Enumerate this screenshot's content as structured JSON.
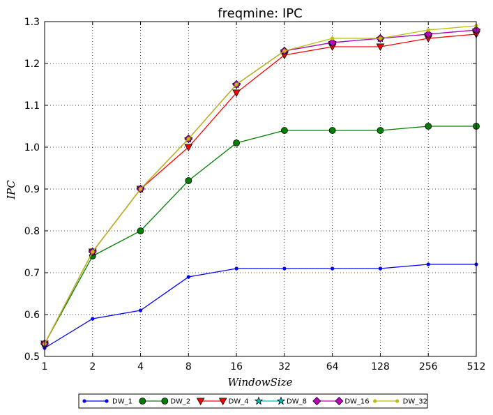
{
  "chart_data": {
    "type": "line",
    "title": "freqmine: IPC",
    "xlabel": "WindowSize",
    "ylabel": "IPC",
    "x": [
      1,
      2,
      4,
      8,
      16,
      32,
      64,
      128,
      256,
      512
    ],
    "x_tick_labels": [
      "1",
      "2",
      "4",
      "8",
      "16",
      "32",
      "64",
      "128",
      "256",
      "512"
    ],
    "x_scale": "log2",
    "ylim": [
      0.5,
      1.3
    ],
    "y_ticks": [
      0.5,
      0.6,
      0.7,
      0.8,
      0.9,
      1.0,
      1.1,
      1.2,
      1.3
    ],
    "y_tick_labels": [
      "0.5",
      "0.6",
      "0.7",
      "0.8",
      "0.9",
      "1.0",
      "1.1",
      "1.2",
      "1.3"
    ],
    "grid": true,
    "legend_position": "bottom",
    "series": [
      {
        "name": "DW_1",
        "color": "#0000ff",
        "marker": "dot",
        "values": [
          0.52,
          0.59,
          0.61,
          0.69,
          0.71,
          0.71,
          0.71,
          0.71,
          0.72,
          0.72
        ]
      },
      {
        "name": "DW_2",
        "color": "#008000",
        "marker": "circle",
        "values": [
          0.53,
          0.74,
          0.8,
          0.92,
          1.01,
          1.04,
          1.04,
          1.04,
          1.05,
          1.05
        ]
      },
      {
        "name": "DW_4",
        "color": "#ff0000",
        "marker": "triangle-down",
        "values": [
          0.53,
          0.75,
          0.9,
          1.0,
          1.13,
          1.22,
          1.24,
          1.24,
          1.26,
          1.27
        ]
      },
      {
        "name": "DW_8",
        "color": "#00bfbf",
        "marker": "star",
        "values": [
          0.53,
          0.75,
          0.9,
          1.02,
          1.15,
          1.23,
          1.25,
          1.26,
          1.27,
          1.28
        ]
      },
      {
        "name": "DW_16",
        "color": "#bf00bf",
        "marker": "diamond",
        "values": [
          0.53,
          0.75,
          0.9,
          1.02,
          1.15,
          1.23,
          1.25,
          1.26,
          1.27,
          1.28
        ]
      },
      {
        "name": "DW_32",
        "color": "#bfbf00",
        "marker": "dot",
        "values": [
          0.53,
          0.75,
          0.9,
          1.02,
          1.15,
          1.23,
          1.26,
          1.26,
          1.28,
          1.29
        ]
      }
    ]
  }
}
